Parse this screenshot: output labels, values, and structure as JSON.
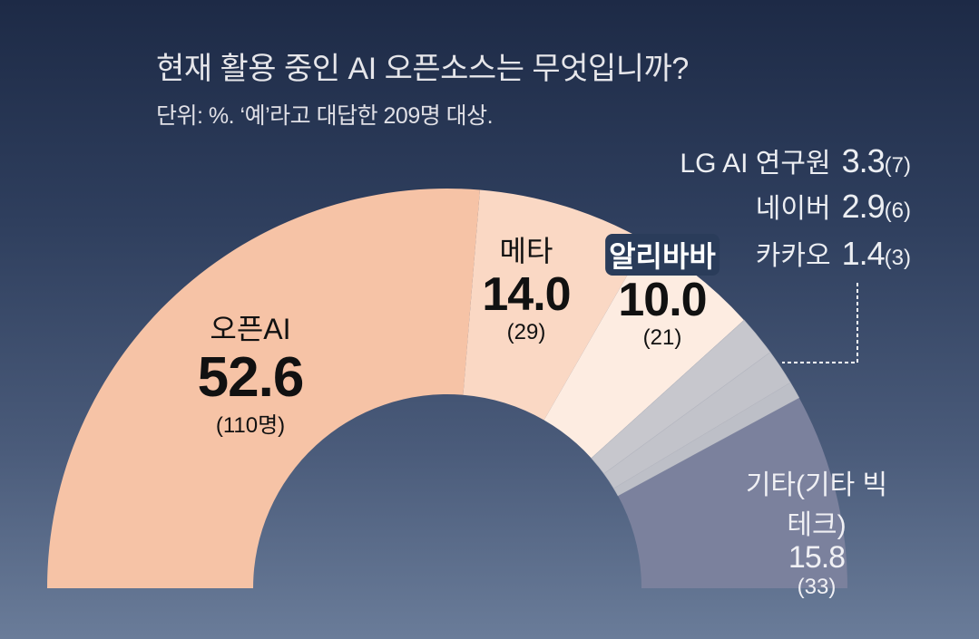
{
  "title": "현재 활용 중인 AI 오픈소스는 무엇입니까?",
  "subtitle": "단위: %. ‘예’라고 대답한 209명 대상.",
  "chart_data": {
    "type": "pie",
    "variant": "semi-donut",
    "title": "현재 활용 중인 AI 오픈소스는 무엇입니까?",
    "subtitle": "단위: %. ‘예’라고 대답한 209명 대상.",
    "slices": [
      {
        "name": "오픈AI",
        "value": 52.6,
        "value_label": "52.6",
        "count_label": "(110명)",
        "color": "#f6c3a6"
      },
      {
        "name": "메타",
        "value": 14.0,
        "value_label": "14.0",
        "count_label": "(29)",
        "color": "#fad8c4"
      },
      {
        "name": "알리바바",
        "value": 10.0,
        "value_label": "10.0",
        "count_label": "(21)",
        "color": "#fdece1"
      },
      {
        "name": "LG AI 연구원",
        "value": 3.3,
        "value_label": "3.3",
        "count_label": "(7)",
        "color": "#c7c7cd"
      },
      {
        "name": "네이버",
        "value": 2.9,
        "value_label": "2.9",
        "count_label": "(6)",
        "color": "#c2c3ca"
      },
      {
        "name": "카카오",
        "value": 1.4,
        "value_label": "1.4",
        "count_label": "(3)",
        "color": "#bdbfc7"
      },
      {
        "name": "기타(기타 빅테크)",
        "value": 15.8,
        "value_label": "15.8",
        "count_label": "(33)",
        "color": "#7b819d"
      }
    ]
  }
}
